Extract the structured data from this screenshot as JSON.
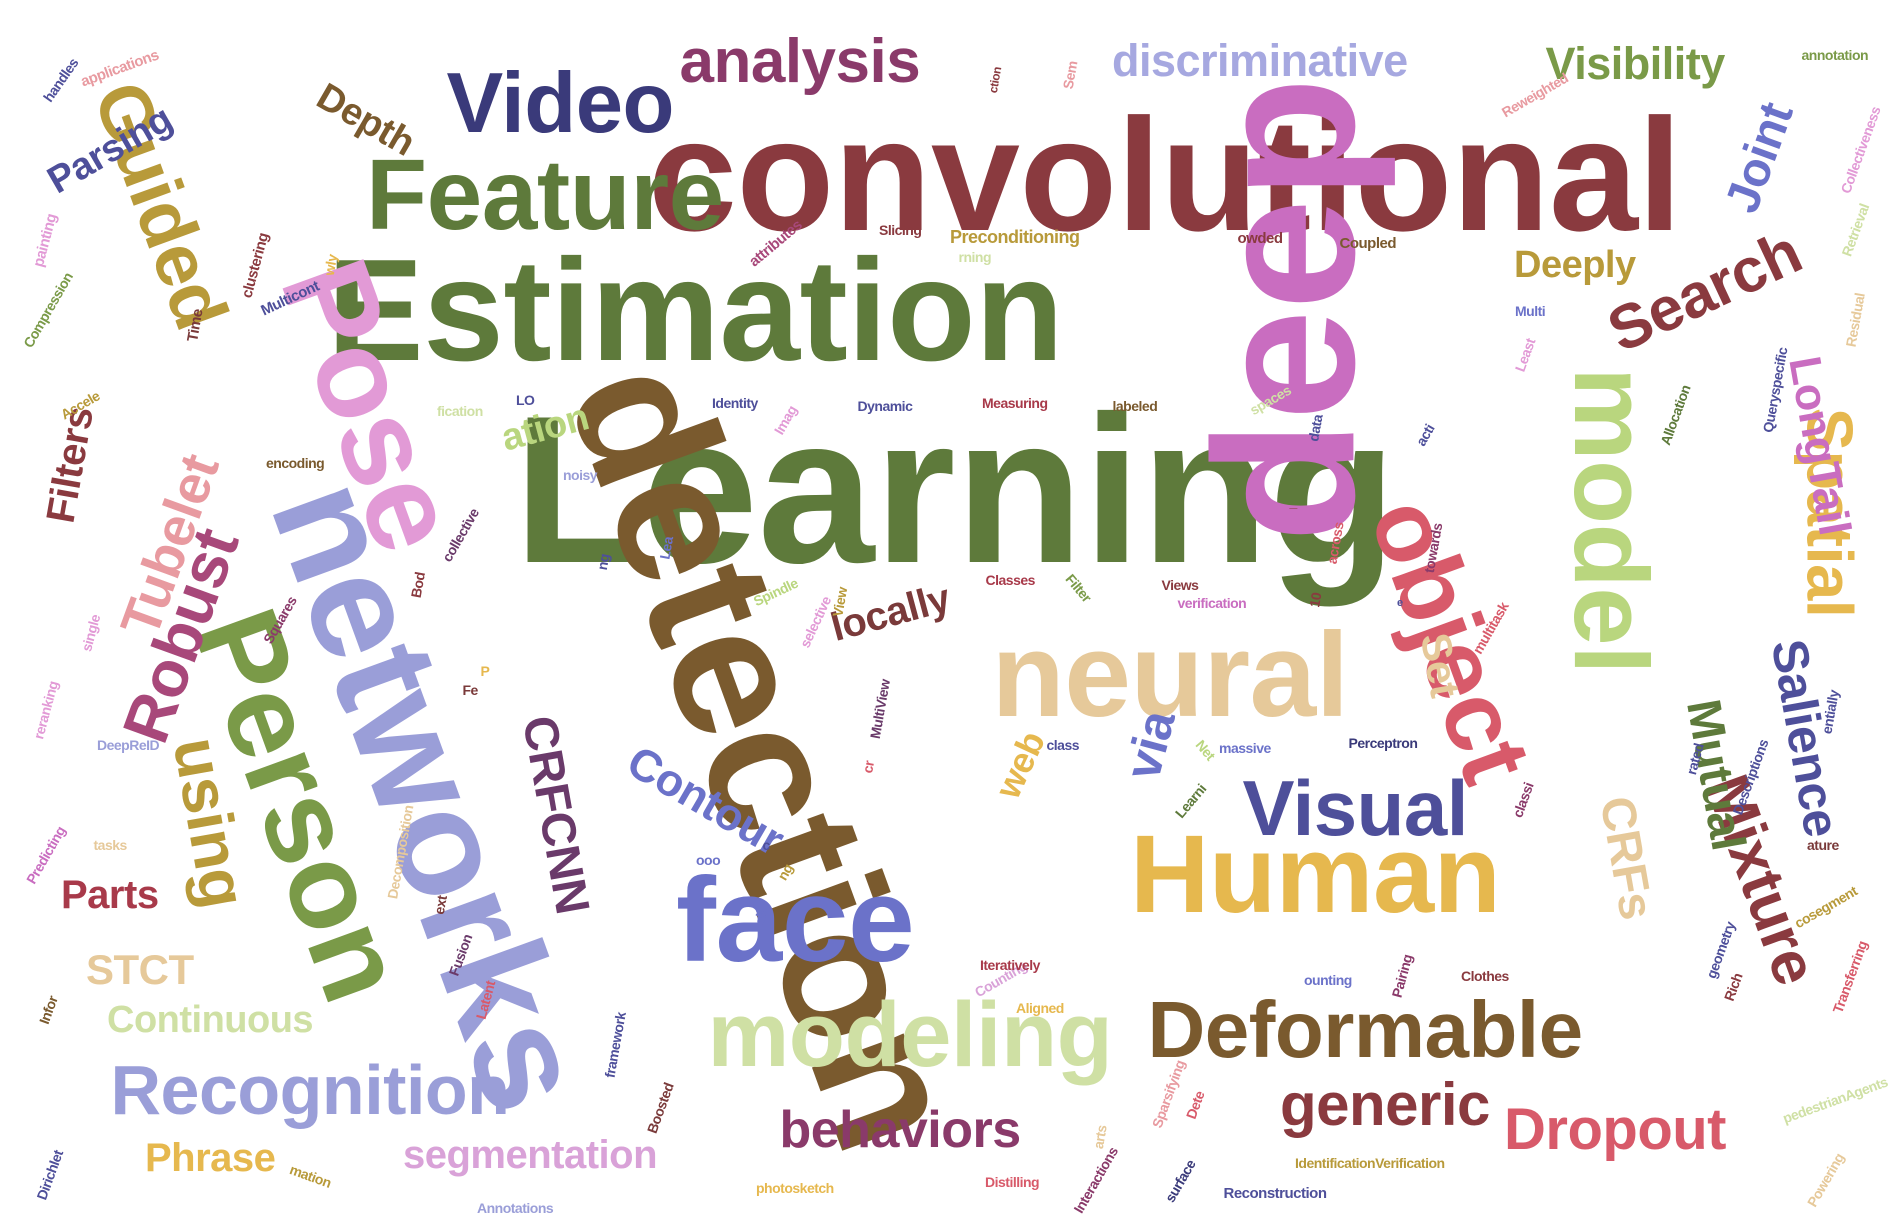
{
  "words": [
    {
      "text": "Learning",
      "color": "#5e7a3b"
    },
    {
      "text": "convolutional",
      "color": "#8a3a3f"
    },
    {
      "text": "deep",
      "color": "#c96dc0"
    },
    {
      "text": "Estimation",
      "color": "#5e7a3b"
    },
    {
      "text": "detection",
      "color": "#7a5a2e"
    },
    {
      "text": "networks",
      "color": "#9a9ed8"
    },
    {
      "text": "Pose",
      "color": "#e29ad6"
    },
    {
      "text": "Person",
      "color": "#7a9a48"
    },
    {
      "text": "neural",
      "color": "#e6c99a"
    },
    {
      "text": "object",
      "color": "#d85a6a"
    },
    {
      "text": "model",
      "color": "#b9d67e"
    },
    {
      "text": "Feature",
      "color": "#5e7a3b"
    },
    {
      "text": "Human",
      "color": "#e6b84e"
    },
    {
      "text": "face",
      "color": "#6b72c9"
    },
    {
      "text": "modeling",
      "color": "#cfe0a4"
    },
    {
      "text": "Deformable",
      "color": "#7a5a2e"
    },
    {
      "text": "Visual",
      "color": "#4e4f9a"
    },
    {
      "text": "Video",
      "color": "#3a3a7a"
    },
    {
      "text": "Guided",
      "color": "#b89a3a"
    },
    {
      "text": "Recognition",
      "color": "#9a9ed8"
    },
    {
      "text": "analysis",
      "color": "#8a3a6a"
    },
    {
      "text": "Search",
      "color": "#8a3a3f"
    },
    {
      "text": "Spatial",
      "color": "#e6b84e"
    },
    {
      "text": "Mixture",
      "color": "#8a3a3f"
    },
    {
      "text": "Robust",
      "color": "#a8487a"
    },
    {
      "text": "using",
      "color": "#b89a3a"
    },
    {
      "text": "CRFCNN",
      "color": "#6a3a6a"
    },
    {
      "text": "Tubelet",
      "color": "#e89aa0"
    },
    {
      "text": "generic",
      "color": "#8a3a3f"
    },
    {
      "text": "Dropout",
      "color": "#d85a6a"
    },
    {
      "text": "behaviors",
      "color": "#8a3a6a"
    },
    {
      "text": "discriminative",
      "color": "#a6a8e0"
    },
    {
      "text": "Visibility",
      "color": "#7a9a48"
    },
    {
      "text": "Joint",
      "color": "#6b72c9"
    },
    {
      "text": "Salience",
      "color": "#4e4f9a"
    },
    {
      "text": "Mutual",
      "color": "#5e7a3b"
    },
    {
      "text": "CRFs",
      "color": "#e6c99a"
    },
    {
      "text": "LongTail",
      "color": "#c96dc0"
    },
    {
      "text": "Contour",
      "color": "#6b72c9"
    },
    {
      "text": "via",
      "color": "#6b72c9"
    },
    {
      "text": "segmentation",
      "color": "#d9a2d8"
    },
    {
      "text": "Continuous",
      "color": "#cfe0a4"
    },
    {
      "text": "Deeply",
      "color": "#b89a3a"
    },
    {
      "text": "Depth",
      "color": "#7a5a2e"
    },
    {
      "text": "Parsing",
      "color": "#4e4f9a"
    },
    {
      "text": "Filters",
      "color": "#8a3a3f"
    },
    {
      "text": "locally",
      "color": "#7a3a3a"
    },
    {
      "text": "Phrase",
      "color": "#e6b84e"
    },
    {
      "text": "STCT",
      "color": "#e6c99a"
    },
    {
      "text": "Parts",
      "color": "#a83a4a"
    },
    {
      "text": "ation",
      "color": "#b9d67e"
    },
    {
      "text": "web",
      "color": "#e6b84e"
    },
    {
      "text": "Set",
      "color": "#e6c99a"
    },
    {
      "text": "Preconditioning",
      "color": "#b89a3a"
    },
    {
      "text": "IdentificationVerification",
      "color": "#b89a3a"
    },
    {
      "text": "Reconstruction",
      "color": "#4e4f9a"
    },
    {
      "text": "Coupled",
      "color": "#7a5a2e"
    },
    {
      "text": "owded",
      "color": "#8a3a3f"
    },
    {
      "text": "Slicing",
      "color": "#8a3a3f"
    },
    {
      "text": "attributes",
      "color": "#a8487a"
    },
    {
      "text": "clustering",
      "color": "#8a3a3f"
    },
    {
      "text": "Compression",
      "color": "#7a9a48"
    },
    {
      "text": "painting",
      "color": "#e29ad6"
    },
    {
      "text": "Multicont",
      "color": "#4e4f9a"
    },
    {
      "text": "Time",
      "color": "#7a3a3a"
    },
    {
      "text": "wly",
      "color": "#e6b84e"
    },
    {
      "text": "rning",
      "color": "#cfe0a4"
    },
    {
      "text": "handles",
      "color": "#4e4f9a"
    },
    {
      "text": "applications",
      "color": "#e89aa0"
    },
    {
      "text": "ction",
      "color": "#8a3a3f"
    },
    {
      "text": "Sem",
      "color": "#e89aa0"
    },
    {
      "text": "Reweighted",
      "color": "#e89aa0"
    },
    {
      "text": "annotation",
      "color": "#7a9a48"
    },
    {
      "text": "Collectiveness",
      "color": "#e29ad6"
    },
    {
      "text": "Retrieval",
      "color": "#cfe0a4"
    },
    {
      "text": "Residual",
      "color": "#e6c99a"
    },
    {
      "text": "Multi",
      "color": "#6b72c9"
    },
    {
      "text": "Least",
      "color": "#e29ad6"
    },
    {
      "text": "Queryspecific",
      "color": "#4e4f9a"
    },
    {
      "text": "Allocation",
      "color": "#5e7a3b"
    },
    {
      "text": "spaces",
      "color": "#cfe0a4"
    },
    {
      "text": "labeled",
      "color": "#7a5a2e"
    },
    {
      "text": "Measuring",
      "color": "#a83a4a"
    },
    {
      "text": "Dynamic",
      "color": "#4e4f9a"
    },
    {
      "text": "Identity",
      "color": "#4e4f9a"
    },
    {
      "text": "LO",
      "color": "#4e4f9a"
    },
    {
      "text": "fication",
      "color": "#cfe0a4"
    },
    {
      "text": "Accele",
      "color": "#b89a3a"
    },
    {
      "text": "Imag",
      "color": "#e29ad6"
    },
    {
      "text": "data",
      "color": "#4e4f9a"
    },
    {
      "text": "acti",
      "color": "#4e4f9a"
    },
    {
      "text": "encoding",
      "color": "#7a5a2e"
    },
    {
      "text": "noisy",
      "color": "#9a9ed8"
    },
    {
      "text": "collective",
      "color": "#6a3a6a"
    },
    {
      "text": "Lea",
      "color": "#6b72c9"
    },
    {
      "text": "ng",
      "color": "#4e4f9a"
    },
    {
      "text": "across",
      "color": "#d85a6a"
    },
    {
      "text": "towards",
      "color": "#8a3a6a"
    },
    {
      "text": "Classes",
      "color": "#a83a4a"
    },
    {
      "text": "Views",
      "color": "#8a3a3f"
    },
    {
      "text": "Filter",
      "color": "#7a9a48"
    },
    {
      "text": "verification",
      "color": "#c96dc0"
    },
    {
      "text": "10",
      "color": "#8a3a3f"
    },
    {
      "text": "e",
      "color": "#4e4f9a"
    },
    {
      "text": "multitask",
      "color": "#d85a6a"
    },
    {
      "text": "Spindle",
      "color": "#b9d67e"
    },
    {
      "text": "selective",
      "color": "#e29ad6"
    },
    {
      "text": "View",
      "color": "#b89a3a"
    },
    {
      "text": "Bod",
      "color": "#8a3a3f"
    },
    {
      "text": "Squares",
      "color": "#8a3a6a"
    },
    {
      "text": "single",
      "color": "#e29ad6"
    },
    {
      "text": "reranking",
      "color": "#e29ad6"
    },
    {
      "text": "DeepReID",
      "color": "#9a9ed8"
    },
    {
      "text": "P",
      "color": "#e6b84e"
    },
    {
      "text": "Fe",
      "color": "#7a3a3a"
    },
    {
      "text": "MultiView",
      "color": "#6a3a6a"
    },
    {
      "text": "cr",
      "color": "#d85a6a"
    },
    {
      "text": "class",
      "color": "#4e4f9a"
    },
    {
      "text": "Net",
      "color": "#b9d67e"
    },
    {
      "text": "massive",
      "color": "#6b72c9"
    },
    {
      "text": "Perceptron",
      "color": "#3a3a7a"
    },
    {
      "text": "rated",
      "color": "#4e4f9a"
    },
    {
      "text": "Descriptions",
      "color": "#4e4f9a"
    },
    {
      "text": "entially",
      "color": "#4e4f9a"
    },
    {
      "text": "Learni",
      "color": "#5e7a3b"
    },
    {
      "text": "classi",
      "color": "#8a3a6a"
    },
    {
      "text": "ature",
      "color": "#7a3a3a"
    },
    {
      "text": "cosegment",
      "color": "#b89a3a"
    },
    {
      "text": "Transferring",
      "color": "#d85a6a"
    },
    {
      "text": "geometry",
      "color": "#4e4f9a"
    },
    {
      "text": "Rich",
      "color": "#8a3a3f"
    },
    {
      "text": "Predicting",
      "color": "#c96dc0"
    },
    {
      "text": "tasks",
      "color": "#e6c99a"
    },
    {
      "text": "Decomposition",
      "color": "#e6c99a"
    },
    {
      "text": "ooo",
      "color": "#6b72c9"
    },
    {
      "text": "oll",
      "color": "#6b72c9"
    },
    {
      "text": "c",
      "color": "#4e4f9a"
    },
    {
      "text": "ng",
      "color": "#b89a3a"
    },
    {
      "text": "ext",
      "color": "#7a3a3a"
    },
    {
      "text": "Fusion",
      "color": "#6a3a6a"
    },
    {
      "text": "Latent",
      "color": "#d85a6a"
    },
    {
      "text": "Counting",
      "color": "#d9a2d8"
    },
    {
      "text": "Aligned",
      "color": "#e6b84e"
    },
    {
      "text": "Iteratively",
      "color": "#a83a4a"
    },
    {
      "text": "ounting",
      "color": "#6b72c9"
    },
    {
      "text": "Pairing",
      "color": "#8a3a6a"
    },
    {
      "text": "Clothes",
      "color": "#8a3a3f"
    },
    {
      "text": "Infor",
      "color": "#7a5a2e"
    },
    {
      "text": "framework",
      "color": "#4e4f9a"
    },
    {
      "text": "Boosted",
      "color": "#7a3a3a"
    },
    {
      "text": "arts",
      "color": "#e6c99a"
    },
    {
      "text": "Sparsifying",
      "color": "#e89aa0"
    },
    {
      "text": "Dete",
      "color": "#d85a6a"
    },
    {
      "text": "pedestrianAgents",
      "color": "#cfe0a4"
    },
    {
      "text": "Powering",
      "color": "#e6c99a"
    },
    {
      "text": "Dirichlet",
      "color": "#4e4f9a"
    },
    {
      "text": "mation",
      "color": "#b89a3a"
    },
    {
      "text": "Annotations",
      "color": "#9a9ed8"
    },
    {
      "text": "photosketch",
      "color": "#e6b84e"
    },
    {
      "text": "Distilling",
      "color": "#d85a6a"
    },
    {
      "text": "Interactions",
      "color": "#8a3a6a"
    },
    {
      "text": "surface",
      "color": "#3a3a7a"
    },
    {
      "text": "_",
      "color": "#8a3a3f"
    }
  ]
}
